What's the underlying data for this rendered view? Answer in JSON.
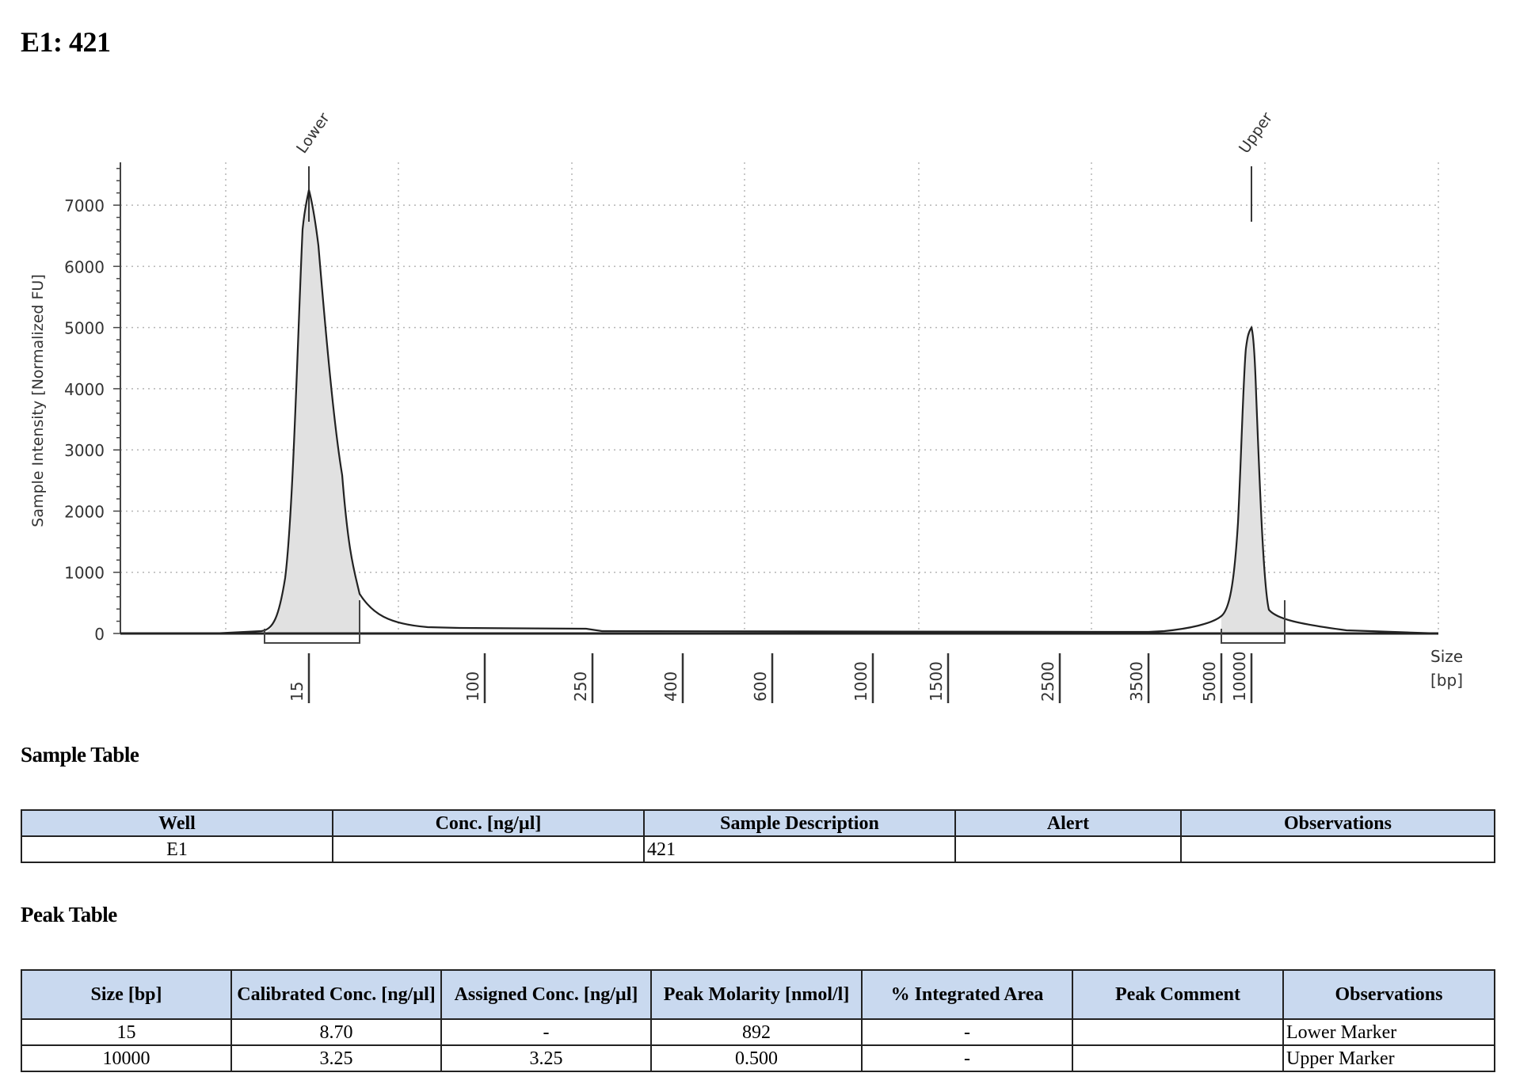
{
  "page": {
    "title": "E1: 421"
  },
  "chart_data": {
    "type": "line",
    "title": "",
    "ylabel": "Sample Intensity [Normalized FU]",
    "xlabel": "Size [bp]",
    "xlabel_lines": [
      "Size",
      "[bp]"
    ],
    "ylim": [
      0,
      7700
    ],
    "yticks": [
      0,
      1000,
      2000,
      3000,
      4000,
      5000,
      6000,
      7000
    ],
    "grid": true,
    "x_size_ticks": [
      "15",
      "100",
      "250",
      "400",
      "600",
      "1000",
      "1500",
      "2500",
      "3500",
      "5000",
      "10000"
    ],
    "peak_labels": [
      {
        "label": "Lower",
        "size_bp": 15
      },
      {
        "label": "Upper",
        "size_bp": 10000
      }
    ],
    "series": [
      {
        "points": [
          {
            "size_bp": 15,
            "fu": 7250
          },
          {
            "size_bp": 10000,
            "fu": 5000
          }
        ]
      }
    ]
  },
  "sample_table": {
    "title": "Sample Table",
    "headers": [
      "Well",
      "Conc. [ng/µl]",
      "Sample Description",
      "Alert",
      "Observations"
    ],
    "rows": [
      [
        "E1",
        "",
        "421",
        "",
        ""
      ]
    ]
  },
  "peak_table": {
    "title": "Peak Table",
    "headers": [
      "Size [bp]",
      "Calibrated Conc. [ng/µl]",
      "Assigned Conc. [ng/µl]",
      "Peak Molarity [nmol/l]",
      "% Integrated Area",
      "Peak Comment",
      "Observations"
    ],
    "rows": [
      [
        "15",
        "8.70",
        "-",
        "892",
        "-",
        "",
        "Lower Marker"
      ],
      [
        "10000",
        "3.25",
        "3.25",
        "0.500",
        "-",
        "",
        "Upper Marker"
      ]
    ]
  }
}
